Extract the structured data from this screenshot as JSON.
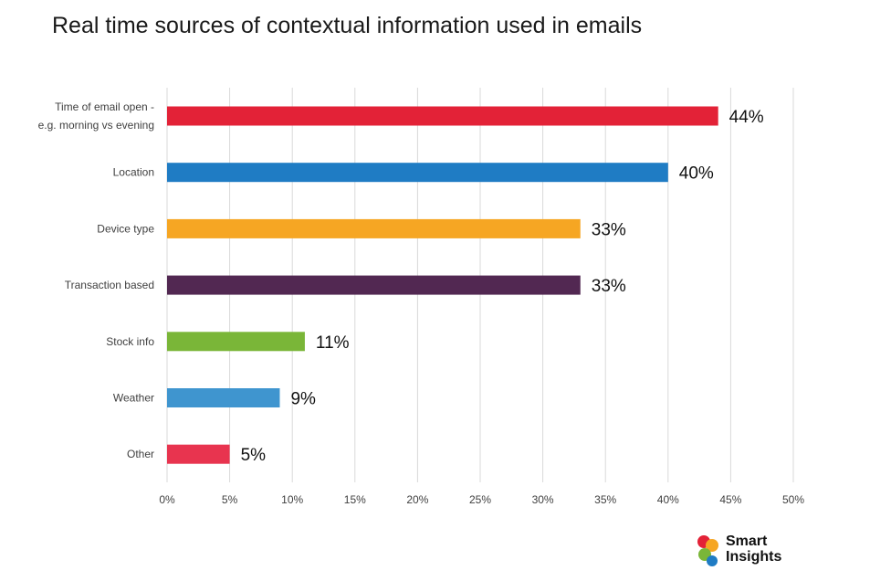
{
  "title": "Real time sources of contextual information used in emails",
  "chart_data": {
    "type": "bar",
    "orientation": "horizontal",
    "title": "Real time sources of contextual information used in emails",
    "categories": [
      [
        "Time of email open -",
        "e.g. morning vs evening"
      ],
      [
        "Location"
      ],
      [
        "Device type"
      ],
      [
        "Transaction based"
      ],
      [
        "Stock info"
      ],
      [
        "Weather"
      ],
      [
        "Other"
      ]
    ],
    "values": [
      44,
      40,
      33,
      33,
      11,
      9,
      5
    ],
    "value_labels": [
      "44%",
      "40%",
      "33%",
      "33%",
      "11%",
      "9%",
      "5%"
    ],
    "colors": [
      "#e32237",
      "#1f7cc4",
      "#f6a623",
      "#522852",
      "#7ab638",
      "#3f95cf",
      "#e8344f"
    ],
    "xlim": [
      0,
      50
    ],
    "xticks": [
      0,
      5,
      10,
      15,
      20,
      25,
      30,
      35,
      40,
      45,
      50
    ],
    "xtick_labels": [
      "0%",
      "5%",
      "10%",
      "15%",
      "20%",
      "25%",
      "30%",
      "35%",
      "40%",
      "45%",
      "50%"
    ],
    "xlabel": "",
    "ylabel": "",
    "grid": "vertical"
  },
  "logo": {
    "line1": "Smart",
    "line2": "Insights",
    "colors": [
      "#e32237",
      "#f6a623",
      "#7ab638",
      "#1f7cc4"
    ]
  }
}
